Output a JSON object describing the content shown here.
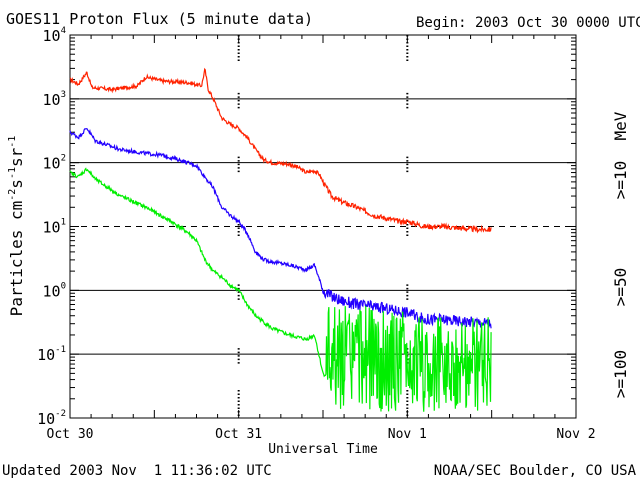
{
  "chart_data": {
    "type": "line",
    "title": "GOES11 Proton Flux (5 minute data)",
    "begin_label": "Begin: 2003 Oct 30 0000 UTC",
    "xlabel": "Universal Time",
    "ylabel": "Particles cm⁻²s⁻¹sr⁻¹",
    "ylabel_parts": {
      "base1": "Particles cm",
      "exp1": "-2",
      "base2": "s",
      "exp2": "-1",
      "base3": "sr",
      "exp3": "-1"
    },
    "yscale": "log",
    "ylim": [
      0.01,
      10000
    ],
    "xlim_days": [
      0,
      3
    ],
    "x_ticks": [
      {
        "day": 0,
        "label": "Oct 30"
      },
      {
        "day": 1,
        "label": "Oct 31"
      },
      {
        "day": 2,
        "label": "Nov 1"
      },
      {
        "day": 3,
        "label": "Nov 2"
      }
    ],
    "y_ticks": [
      {
        "value": 10000,
        "base": "10",
        "exp": "4"
      },
      {
        "value": 1000,
        "base": "10",
        "exp": "3"
      },
      {
        "value": 100,
        "base": "10",
        "exp": "2"
      },
      {
        "value": 10,
        "base": "10",
        "exp": "1"
      },
      {
        "value": 1,
        "base": "10",
        "exp": "0"
      },
      {
        "value": 0.1,
        "base": "10",
        "exp": "-1"
      },
      {
        "value": 0.01,
        "base": "10",
        "exp": "-2"
      }
    ],
    "threshold_lines": [
      {
        "value": 1000,
        "style": "solid"
      },
      {
        "value": 100,
        "style": "solid"
      },
      {
        "value": 10,
        "style": "dashed"
      },
      {
        "value": 1,
        "style": "solid"
      },
      {
        "value": 0.1,
        "style": "solid"
      }
    ],
    "series": [
      {
        "name": ">=10 MeV",
        "color": "#ff2200",
        "points": [
          [
            0.0,
            2000
          ],
          [
            0.05,
            1700
          ],
          [
            0.1,
            2600
          ],
          [
            0.13,
            1500
          ],
          [
            0.25,
            1400
          ],
          [
            0.4,
            1600
          ],
          [
            0.45,
            2200
          ],
          [
            0.55,
            1900
          ],
          [
            0.7,
            1800
          ],
          [
            0.78,
            1600
          ],
          [
            0.8,
            2900
          ],
          [
            0.82,
            1400
          ],
          [
            0.85,
            1000
          ],
          [
            0.9,
            500
          ],
          [
            0.95,
            400
          ],
          [
            1.0,
            350
          ],
          [
            1.02,
            300
          ],
          [
            1.05,
            250
          ],
          [
            1.1,
            160
          ],
          [
            1.15,
            110
          ],
          [
            1.2,
            100
          ],
          [
            1.3,
            95
          ],
          [
            1.35,
            85
          ],
          [
            1.4,
            70
          ],
          [
            1.45,
            75
          ],
          [
            1.48,
            65
          ],
          [
            1.5,
            50
          ],
          [
            1.55,
            30
          ],
          [
            1.6,
            25
          ],
          [
            1.7,
            20
          ],
          [
            1.8,
            15
          ],
          [
            1.9,
            13
          ],
          [
            1.95,
            12
          ],
          [
            2.0,
            12
          ],
          [
            2.05,
            11
          ],
          [
            2.1,
            10
          ],
          [
            2.2,
            10
          ],
          [
            2.3,
            9.5
          ],
          [
            2.4,
            9
          ],
          [
            2.5,
            9
          ]
        ]
      },
      {
        "name": ">=50 MeV",
        "color": "#2200ff",
        "points": [
          [
            0.0,
            300
          ],
          [
            0.05,
            250
          ],
          [
            0.1,
            350
          ],
          [
            0.15,
            220
          ],
          [
            0.3,
            160
          ],
          [
            0.45,
            140
          ],
          [
            0.55,
            130
          ],
          [
            0.65,
            110
          ],
          [
            0.75,
            90
          ],
          [
            0.8,
            60
          ],
          [
            0.85,
            40
          ],
          [
            0.9,
            20
          ],
          [
            0.95,
            15
          ],
          [
            1.0,
            12
          ],
          [
            1.05,
            8
          ],
          [
            1.1,
            4
          ],
          [
            1.15,
            3
          ],
          [
            1.2,
            2.8
          ],
          [
            1.3,
            2.5
          ],
          [
            1.4,
            2.1
          ],
          [
            1.45,
            2.5
          ],
          [
            1.5,
            1.0
          ],
          [
            1.55,
            0.8
          ],
          [
            1.6,
            0.7
          ],
          [
            1.7,
            0.6
          ],
          [
            1.8,
            0.55
          ],
          [
            1.9,
            0.5
          ],
          [
            2.0,
            0.45
          ],
          [
            2.05,
            0.4
          ],
          [
            2.1,
            0.35
          ],
          [
            2.2,
            0.35
          ],
          [
            2.3,
            0.33
          ],
          [
            2.4,
            0.32
          ],
          [
            2.5,
            0.3
          ]
        ]
      },
      {
        "name": ">=100 MeV",
        "color": "#00ee00",
        "points": [
          [
            0.0,
            70
          ],
          [
            0.05,
            60
          ],
          [
            0.1,
            80
          ],
          [
            0.15,
            55
          ],
          [
            0.3,
            30
          ],
          [
            0.45,
            20
          ],
          [
            0.6,
            12
          ],
          [
            0.7,
            8
          ],
          [
            0.75,
            6
          ],
          [
            0.8,
            3
          ],
          [
            0.85,
            2
          ],
          [
            0.9,
            1.6
          ],
          [
            0.95,
            1.2
          ],
          [
            1.0,
            1.0
          ],
          [
            1.05,
            0.6
          ],
          [
            1.1,
            0.4
          ],
          [
            1.2,
            0.25
          ],
          [
            1.3,
            0.2
          ],
          [
            1.4,
            0.17
          ],
          [
            1.45,
            0.2
          ],
          [
            1.5,
            0.05
          ],
          [
            1.55,
            0.04
          ],
          [
            1.6,
            0.035
          ],
          [
            1.7,
            0.03
          ],
          [
            1.8,
            0.03
          ],
          [
            1.9,
            0.025
          ],
          [
            2.0,
            0.025
          ],
          [
            2.1,
            0.02
          ],
          [
            2.2,
            0.02
          ],
          [
            2.3,
            0.02
          ],
          [
            2.4,
            0.02
          ],
          [
            2.5,
            0.02
          ]
        ]
      }
    ],
    "right_labels": [
      {
        "text": ">=10",
        "color": "#ff2200"
      },
      {
        "text": "MeV",
        "color": "#000000"
      },
      {
        "text": ">=50",
        "color": "#2200ff"
      },
      {
        "text": ">=100",
        "color": "#00ee00"
      }
    ]
  },
  "footer": {
    "left": "Updated 2003 Nov  1 11:36:02 UTC",
    "right": "NOAA/SEC Boulder, CO USA"
  }
}
